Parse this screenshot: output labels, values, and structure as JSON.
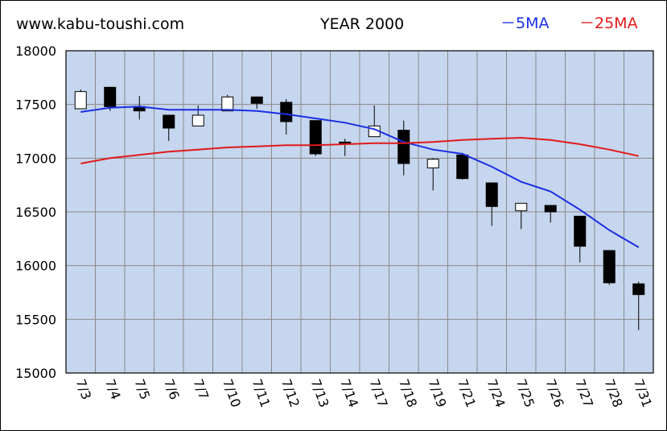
{
  "header": {
    "site": "www.kabu-toushi.com",
    "title": "YEAR 2000",
    "legend_5ma": "－5MA",
    "legend_25ma": "－25MA"
  },
  "colors": {
    "plot_bg": "#c6d6ee",
    "grid": "#8a8a8a",
    "ma5": "#1a2ee6",
    "ma25": "#e01a1a",
    "candle_up": "#ffffff",
    "candle_down": "#000000"
  },
  "chart_data": {
    "type": "candlestick",
    "title": "YEAR 2000",
    "ylim": [
      15000,
      18000
    ],
    "yticks": [
      15000,
      15500,
      16000,
      16500,
      17000,
      17500,
      18000
    ],
    "grid": true,
    "legend_placement": "top-right",
    "categories": [
      "7/3",
      "7/4",
      "7/5",
      "7/6",
      "7/7",
      "7/10",
      "7/11",
      "7/12",
      "7/13",
      "7/14",
      "7/17",
      "7/18",
      "7/19",
      "7/21",
      "7/24",
      "7/25",
      "7/26",
      "7/27",
      "7/28",
      "7/31"
    ],
    "candles": [
      {
        "open": 17460,
        "high": 17640,
        "low": 17460,
        "close": 17620
      },
      {
        "open": 17660,
        "high": 17660,
        "low": 17440,
        "close": 17480
      },
      {
        "open": 17480,
        "high": 17580,
        "low": 17360,
        "close": 17440
      },
      {
        "open": 17400,
        "high": 17400,
        "low": 17160,
        "close": 17280
      },
      {
        "open": 17300,
        "high": 17490,
        "low": 17300,
        "close": 17400
      },
      {
        "open": 17440,
        "high": 17590,
        "low": 17440,
        "close": 17570
      },
      {
        "open": 17570,
        "high": 17570,
        "low": 17460,
        "close": 17510
      },
      {
        "open": 17520,
        "high": 17550,
        "low": 17220,
        "close": 17340
      },
      {
        "open": 17350,
        "high": 17350,
        "low": 17020,
        "close": 17040
      },
      {
        "open": 17150,
        "high": 17180,
        "low": 17020,
        "close": 17130
      },
      {
        "open": 17200,
        "high": 17490,
        "low": 17200,
        "close": 17300
      },
      {
        "open": 17260,
        "high": 17350,
        "low": 16840,
        "close": 16950
      },
      {
        "open": 16910,
        "high": 17000,
        "low": 16700,
        "close": 16990
      },
      {
        "open": 17030,
        "high": 17050,
        "low": 16800,
        "close": 16810
      },
      {
        "open": 16770,
        "high": 16770,
        "low": 16370,
        "close": 16550
      },
      {
        "open": 16510,
        "high": 16580,
        "low": 16340,
        "close": 16580
      },
      {
        "open": 16560,
        "high": 16560,
        "low": 16400,
        "close": 16500
      },
      {
        "open": 16460,
        "high": 16460,
        "low": 16030,
        "close": 16180
      },
      {
        "open": 16140,
        "high": 16140,
        "low": 15820,
        "close": 15840
      },
      {
        "open": 15830,
        "high": 15850,
        "low": 15400,
        "close": 15730
      }
    ],
    "series": [
      {
        "name": "5MA",
        "values": [
          17430,
          17470,
          17480,
          17450,
          17450,
          17450,
          17440,
          17410,
          17370,
          17330,
          17270,
          17150,
          17080,
          17040,
          16920,
          16780,
          16690,
          16520,
          16330,
          16170
        ]
      },
      {
        "name": "25MA",
        "values": [
          16950,
          17000,
          17030,
          17060,
          17080,
          17100,
          17110,
          17120,
          17120,
          17130,
          17140,
          17140,
          17150,
          17170,
          17180,
          17190,
          17170,
          17130,
          17080,
          17020
        ]
      }
    ]
  }
}
